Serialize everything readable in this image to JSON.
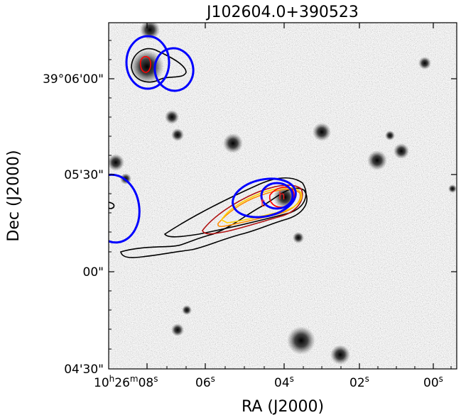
{
  "figure": {
    "title": "J102604.0+390523",
    "x_axis_label": "RA (J2000)",
    "y_axis_label": "Dec (J2000)",
    "x_ticks": [
      {
        "base": "10",
        "h": "h",
        "mid": "26",
        "m": "m",
        "sec": "08",
        "s": "s"
      },
      {
        "sec": "06",
        "s": "s"
      },
      {
        "sec": "04",
        "s": "s"
      },
      {
        "sec": "02",
        "s": "s"
      },
      {
        "sec": "00",
        "s": "s"
      }
    ],
    "y_ticks": [
      "39°06'00\"",
      "05'30\"",
      "00\"",
      "04'30\""
    ],
    "markers": [
      {
        "text": "h",
        "color": "#ff2020"
      },
      {
        "text": "t",
        "color": "#ff2020"
      }
    ],
    "contour_colors": {
      "black": "#000000",
      "darkred": "#b01010",
      "orange": "#ff8c00",
      "yellow": "#ffd000",
      "blue": "#0000ff",
      "red": "#ff0000"
    },
    "background": "greyscale optical image"
  }
}
